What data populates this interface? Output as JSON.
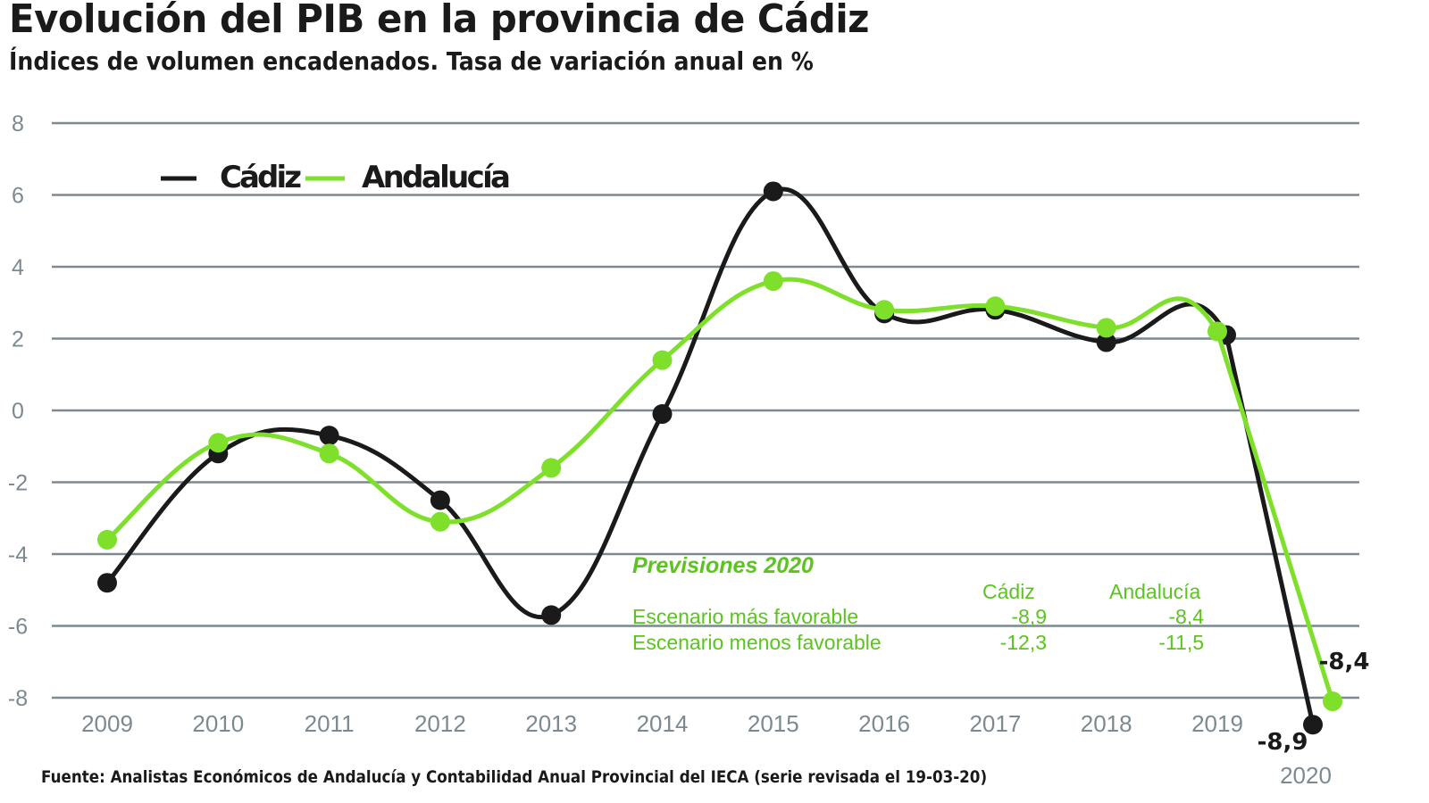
{
  "chart_data": {
    "type": "line",
    "title": "Evolución del PIB en la provincia de Cádiz",
    "subtitle": "Índices de volumen encadenados. Tasa de variación anual en %",
    "source": "Fuente: Analistas Económicos de Andalucía y Contabilidad Anual Provincial del IECA (serie revisada el 19-03-20)",
    "xlabel": "",
    "ylabel": "",
    "categories": [
      "2009",
      "2010",
      "2011",
      "2012",
      "2013",
      "2014",
      "2015",
      "2016",
      "2017",
      "2018",
      "2019",
      "2020"
    ],
    "yticks": [
      "8",
      "6",
      "4",
      "2",
      "0",
      "-2",
      "-4",
      "-6",
      "-8"
    ],
    "ylim": [
      -8,
      8
    ],
    "grid": true,
    "legend_position": "top-left",
    "series": [
      {
        "name": "Cádiz",
        "color": "#1a1a1a",
        "values": [
          -4.8,
          -1.2,
          -0.7,
          -2.5,
          -5.7,
          -0.1,
          6.1,
          2.7,
          2.8,
          1.9,
          2.1,
          -8.9
        ]
      },
      {
        "name": "Andalucía",
        "color": "#7ee02b",
        "values": [
          -3.6,
          -0.9,
          -1.2,
          -3.1,
          -1.6,
          1.4,
          3.6,
          2.8,
          2.9,
          2.3,
          2.2,
          -8.4
        ]
      }
    ],
    "point_labels": {
      "cadiz_2020": "-8,9",
      "andalucia_2020": "-8,4"
    },
    "annotation": {
      "title": "Previsiones 2020",
      "col_headers": [
        "Cádiz",
        "Andalucía"
      ],
      "rows": [
        {
          "label": "Escenario más favorable",
          "cadiz": "-8,9",
          "andalucia": "-8,4"
        },
        {
          "label": "Escenario menos favorable",
          "cadiz": "-12,3",
          "andalucia": "-11,5"
        }
      ],
      "color": "#5cc41e"
    }
  }
}
